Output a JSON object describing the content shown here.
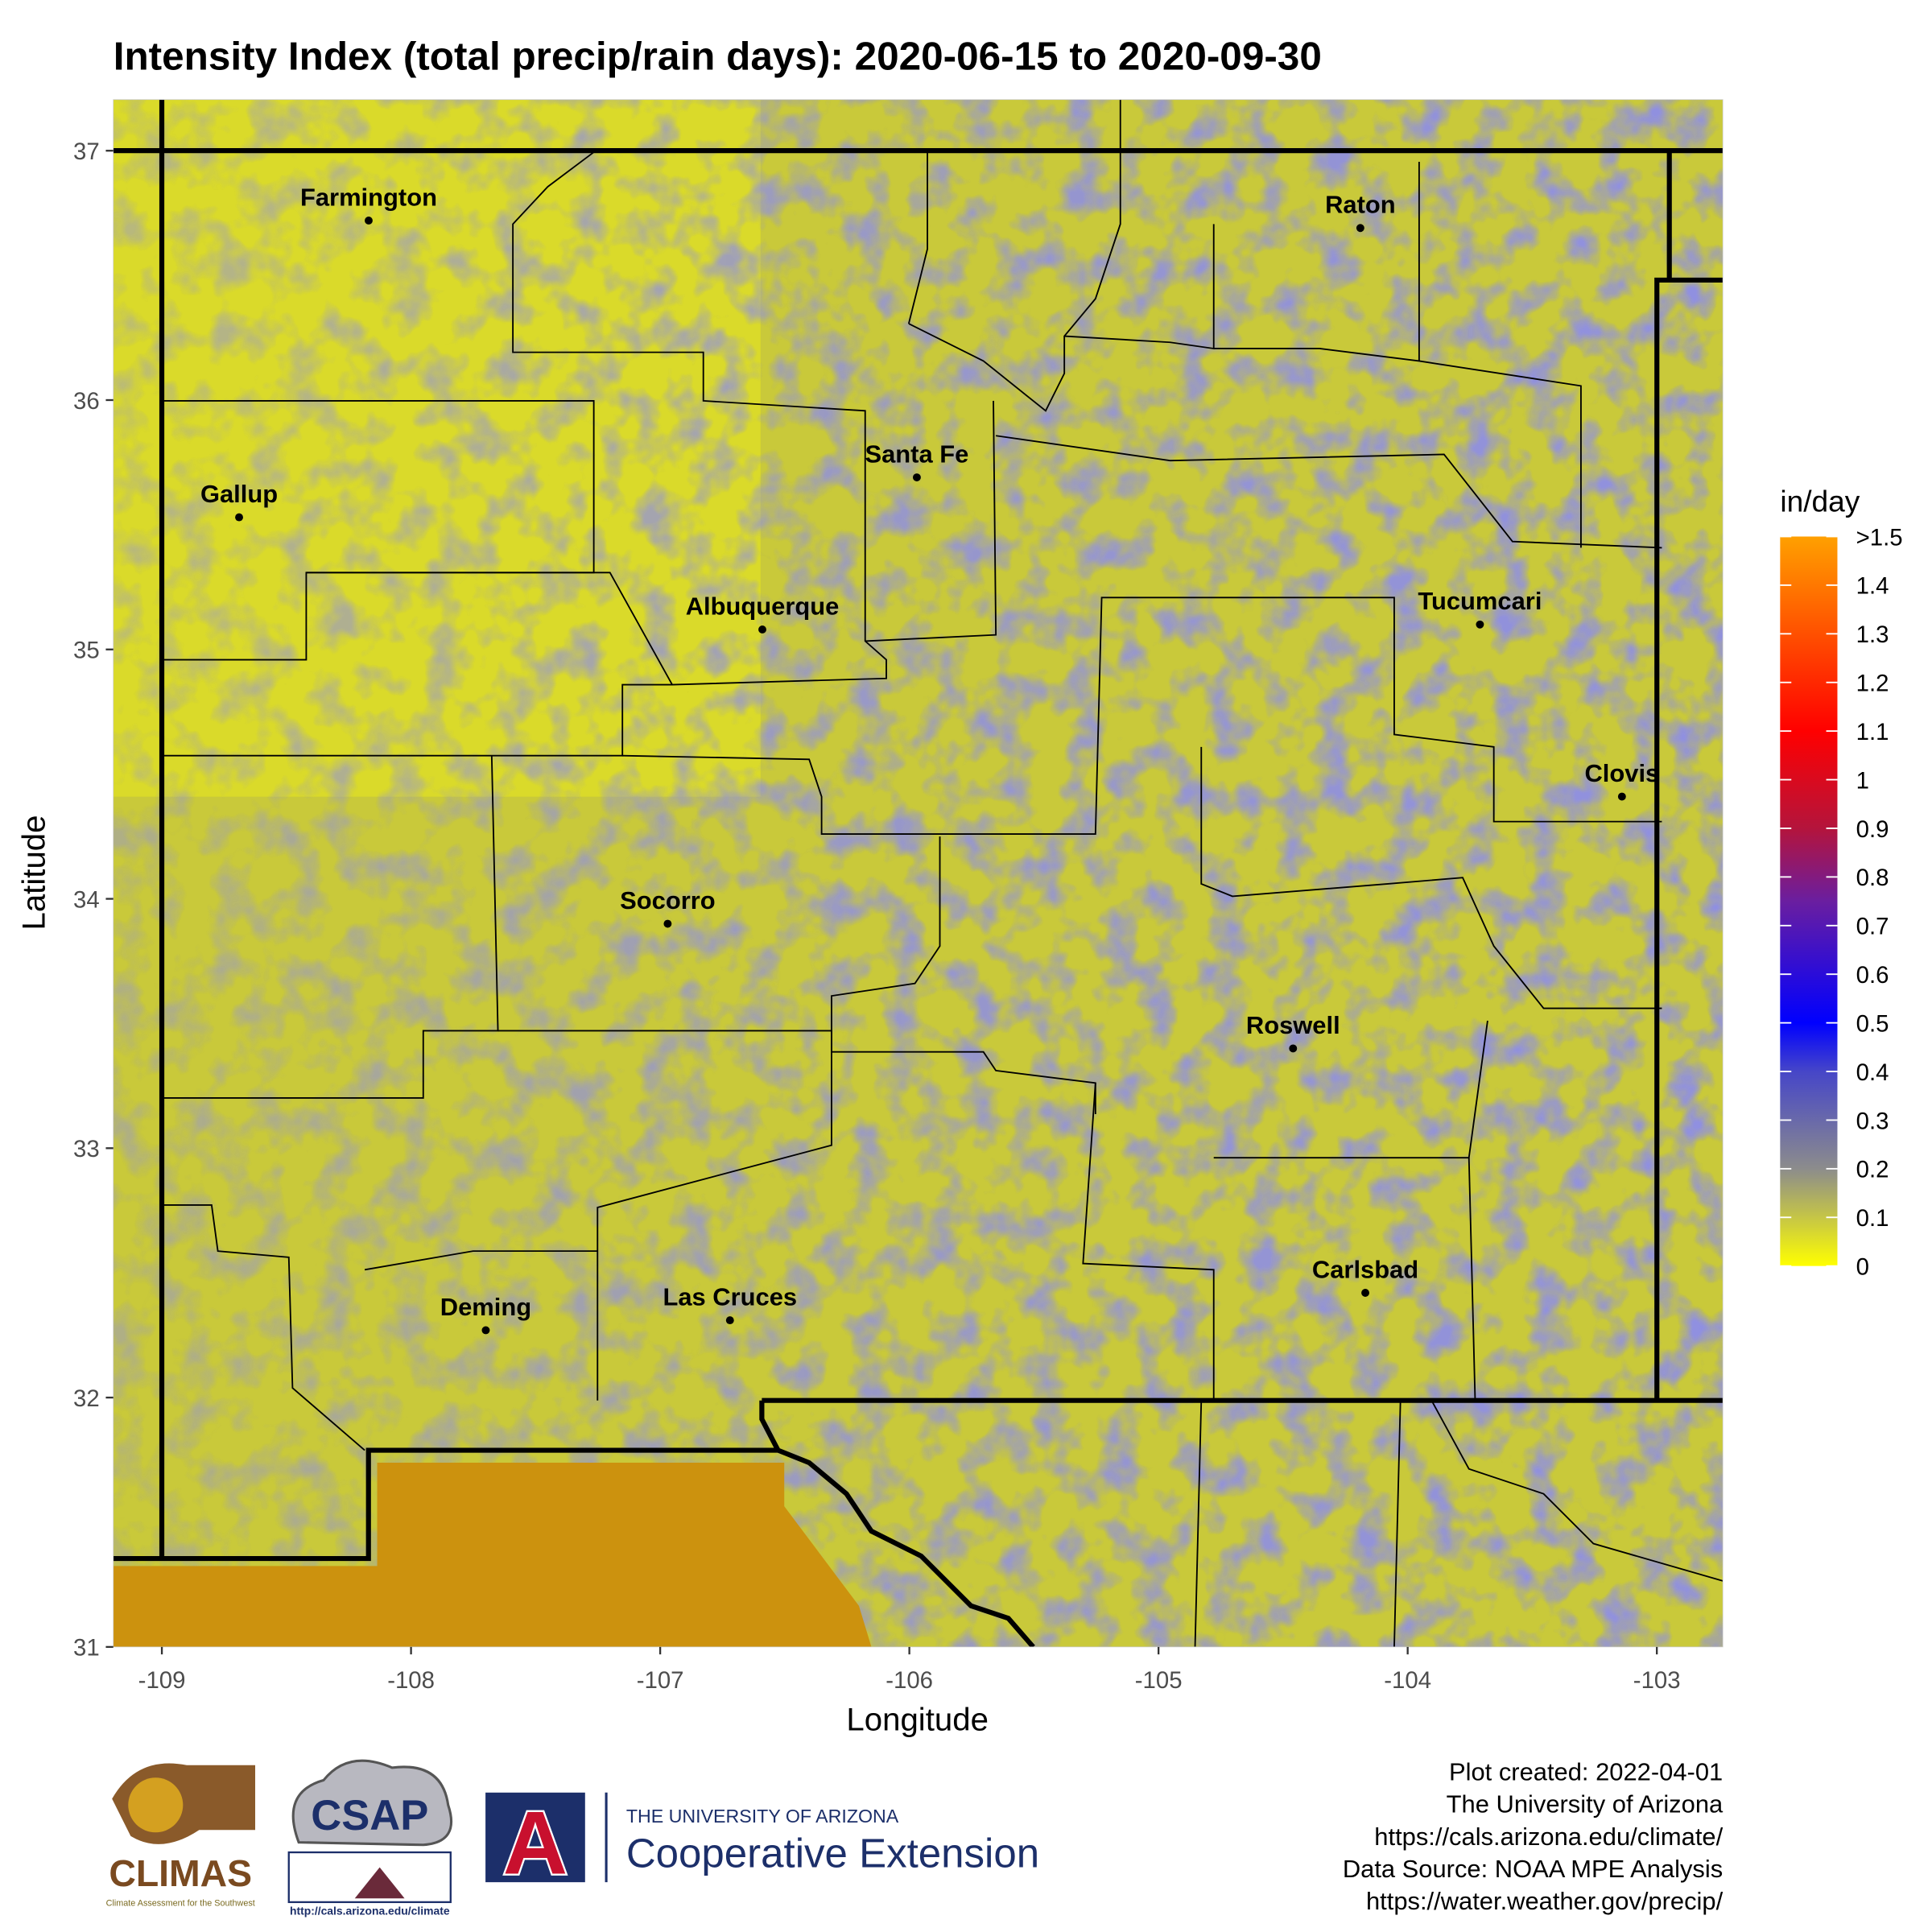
{
  "chart_data": {
    "type": "map",
    "title": "Intensity Index (total precip/rain days): 2020-06-15 to 2020-09-30",
    "xlabel": "Longitude",
    "ylabel": "Latitude",
    "xlim": [
      -109.195,
      -102.735
    ],
    "ylim": [
      31,
      37.205
    ],
    "xticks": [
      -109,
      -108,
      -107,
      -106,
      -105,
      -104,
      -103
    ],
    "yticks": [
      31,
      32,
      33,
      34,
      35,
      36,
      37
    ],
    "points": [
      {
        "name": "Farmington",
        "lon": -108.17,
        "lat": 36.72
      },
      {
        "name": "Gallup",
        "lon": -108.69,
        "lat": 35.53
      },
      {
        "name": "Santa Fe",
        "lon": -105.97,
        "lat": 35.69
      },
      {
        "name": "Albuquerque",
        "lon": -106.59,
        "lat": 35.08
      },
      {
        "name": "Socorro",
        "lon": -106.97,
        "lat": 33.9
      },
      {
        "name": "Raton",
        "lon": -104.19,
        "lat": 36.69
      },
      {
        "name": "Tucumcari",
        "lon": -103.71,
        "lat": 35.1
      },
      {
        "name": "Clovis",
        "lon": -103.14,
        "lat": 34.41
      },
      {
        "name": "Roswell",
        "lon": -104.46,
        "lat": 33.4
      },
      {
        "name": "Carlsbad",
        "lon": -104.17,
        "lat": 32.42
      },
      {
        "name": "Deming",
        "lon": -107.7,
        "lat": 32.27
      },
      {
        "name": "Las Cruces",
        "lon": -106.72,
        "lat": 32.31
      }
    ],
    "legend": {
      "title": "in/day",
      "lim": [
        0,
        1.5
      ],
      "ticks": [
        0,
        0.1,
        0.2,
        0.3,
        0.4,
        0.5,
        0.6,
        0.7,
        0.8,
        0.9,
        1,
        1.1,
        1.2,
        1.3,
        1.4,
        {
          "value": 1.5,
          "label": ">1.5"
        }
      ],
      "colorscale": [
        [
          0,
          "#ffff00"
        ],
        [
          0.2,
          "#8c8c8c"
        ],
        [
          0.4,
          "#4646c8"
        ],
        [
          0.5,
          "#0000ff"
        ],
        [
          0.75,
          "#6a1ea0"
        ],
        [
          0.9,
          "#b4143c"
        ],
        [
          1.1,
          "#ff0000"
        ],
        [
          1.3,
          "#ff5000"
        ],
        [
          1.5,
          "#ffa000"
        ]
      ]
    },
    "footer": [
      "Plot created: 2022-04-01",
      "The University of Arizona",
      "https://cals.arizona.edu/climate/",
      "Data Source: NOAA MPE Analysis",
      "https://water.weather.gov/precip/"
    ],
    "logos": {
      "climas": "CLIMAS",
      "climas_sub": "Climate Assessment for the Southwest",
      "csap": "CSAP",
      "csap_url": "http://cals.arizona.edu/climate",
      "ua_top": "THE UNIVERSITY OF ARIZONA",
      "ua_main": "Cooperative Extension"
    }
  }
}
